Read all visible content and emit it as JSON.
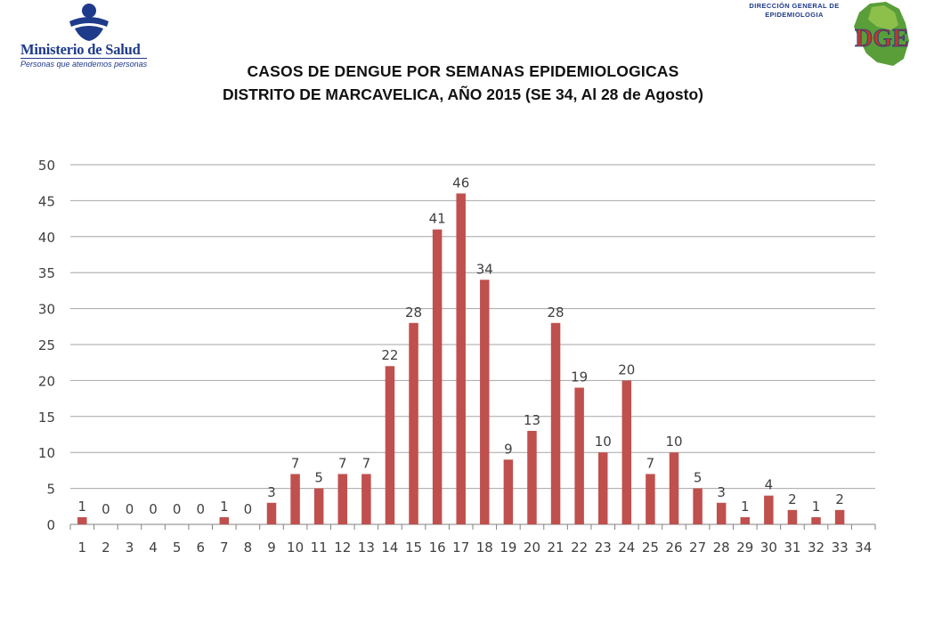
{
  "header": {
    "ministry_name": "Ministerio de Salud",
    "ministry_slogan": "Personas que atendemos personas",
    "dge_text_line1": "DIRECCIÓN GENERAL DE",
    "dge_text_line2": "EPIDEMIOLOGIA",
    "dge_logo_letters": "DGE"
  },
  "chart_data": {
    "type": "bar",
    "title": "CASOS DE DENGUE POR SEMANAS EPIDEMIOLOGICAS",
    "subtitle": "DISTRITO DE MARCAVELICA, AÑO 2015 (SE 34, Al 28 de Agosto)",
    "categories": [
      "1",
      "2",
      "3",
      "4",
      "5",
      "6",
      "7",
      "8",
      "9",
      "10",
      "11",
      "12",
      "13",
      "14",
      "15",
      "16",
      "17",
      "18",
      "19",
      "20",
      "21",
      "22",
      "23",
      "24",
      "25",
      "26",
      "27",
      "28",
      "29",
      "30",
      "31",
      "32",
      "33",
      "34"
    ],
    "values": [
      1,
      0,
      0,
      0,
      0,
      0,
      1,
      0,
      3,
      7,
      5,
      7,
      7,
      22,
      28,
      41,
      46,
      34,
      9,
      13,
      28,
      19,
      10,
      20,
      7,
      10,
      5,
      3,
      1,
      4,
      2,
      1,
      2,
      null
    ],
    "ylim": [
      0,
      50
    ],
    "yticks": [
      0,
      5,
      10,
      15,
      20,
      25,
      30,
      35,
      40,
      45,
      50
    ],
    "grid": true,
    "bar_color": "#c0504d",
    "grid_color": "#a6a6a6",
    "xlabel": "",
    "ylabel": ""
  }
}
